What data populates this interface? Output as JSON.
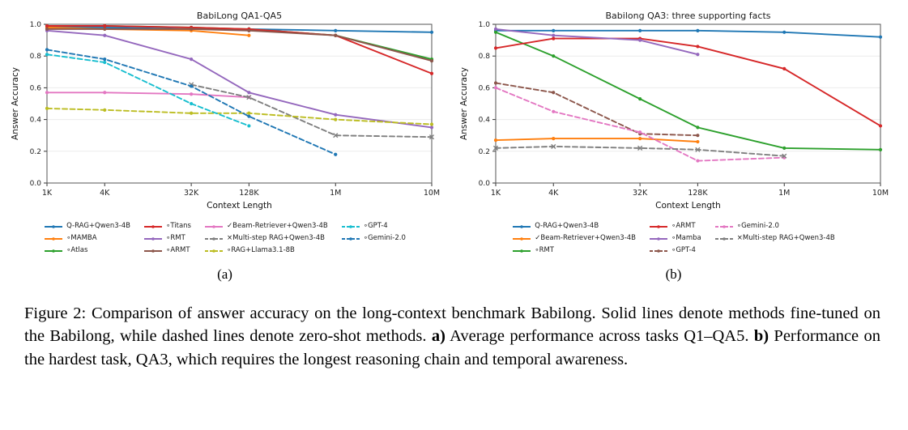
{
  "figure": {
    "subcaptions": [
      "(a)",
      "(b)"
    ],
    "caption_segments": [
      {
        "bold": false,
        "text": "Figure 2: Comparison of answer accuracy on the long-context benchmark Babilong. Solid lines denote methods fine-tuned on the Babilong, while dashed lines denote zero-shot methods. "
      },
      {
        "bold": true,
        "text": "a)"
      },
      {
        "bold": false,
        "text": " Average performance across tasks Q1–QA5. "
      },
      {
        "bold": true,
        "text": "b)"
      },
      {
        "bold": false,
        "text": " Performance on the hardest task, QA3, which requires the longest reasoning chain and temporal awareness."
      }
    ]
  },
  "chart_data": [
    {
      "type": "line",
      "title": "BabiLong QA1-QA5",
      "xlabel": "Context Length",
      "ylabel": "Answer Accuracy",
      "categories": [
        "1K",
        "4K",
        "32K",
        "128K",
        "1M",
        "10M"
      ],
      "x_positions": [
        3.0,
        3.6,
        4.5,
        5.1,
        6.0,
        7.0
      ],
      "ylim": [
        0.0,
        1.0
      ],
      "yticks": [
        0.0,
        0.2,
        0.4,
        0.6,
        0.8,
        1.0
      ],
      "grid": true,
      "legend_position": "below",
      "series": [
        {
          "label": "Q-RAG+Qwen3-4B",
          "color": "#1f77b4",
          "dashed": false,
          "marker": "dot",
          "values": [
            0.98,
            0.98,
            0.97,
            0.97,
            0.96,
            0.95
          ]
        },
        {
          "label": "∘MAMBA",
          "color": "#ff7f0e",
          "dashed": false,
          "marker": "dot",
          "values": [
            0.98,
            0.97,
            0.96,
            0.93,
            null,
            null
          ]
        },
        {
          "label": "∘Atlas",
          "color": "#2ca02c",
          "dashed": false,
          "marker": "dot",
          "values": [
            0.99,
            0.99,
            0.98,
            0.97,
            0.93,
            0.78
          ]
        },
        {
          "label": "∘Titans",
          "color": "#d62728",
          "dashed": false,
          "marker": "dot",
          "values": [
            0.99,
            0.99,
            0.98,
            0.97,
            0.93,
            0.69
          ]
        },
        {
          "label": "∘RMT",
          "color": "#9467bd",
          "dashed": false,
          "marker": "dot",
          "values": [
            0.96,
            0.93,
            0.78,
            0.57,
            0.43,
            0.35
          ]
        },
        {
          "label": "∘ARMT",
          "color": "#8c564b",
          "dashed": false,
          "marker": "dot",
          "values": [
            0.97,
            0.97,
            0.97,
            0.96,
            0.93,
            0.77
          ]
        },
        {
          "label": "✓Beam-Retriever+Qwen3-4B",
          "color": "#e377c2",
          "dashed": false,
          "marker": "dot",
          "values": [
            0.57,
            0.57,
            0.56,
            0.54,
            null,
            null
          ]
        },
        {
          "label": "×Multi-step RAG+Qwen3-4B",
          "color": "#7f7f7f",
          "dashed": true,
          "marker": "x",
          "values": [
            null,
            null,
            0.62,
            0.54,
            0.3,
            0.29
          ]
        },
        {
          "label": "∘RAG+Llama3.1-8B",
          "color": "#bcbd22",
          "dashed": true,
          "marker": "dot",
          "values": [
            0.47,
            0.46,
            0.44,
            0.44,
            0.4,
            0.37
          ]
        },
        {
          "label": "∘GPT-4",
          "color": "#17becf",
          "dashed": true,
          "marker": "dot",
          "values": [
            0.81,
            0.76,
            0.5,
            0.36,
            null,
            null
          ]
        },
        {
          "label": "∘Gemini-2.0",
          "color": "#1f77b4",
          "dashed": true,
          "marker": "dot",
          "values": [
            0.84,
            0.78,
            0.61,
            0.42,
            0.18,
            null
          ]
        }
      ]
    },
    {
      "type": "line",
      "title": "Babilong QA3: three supporting facts",
      "xlabel": "Context Length",
      "ylabel": "Answer Accuracy",
      "categories": [
        "1K",
        "4K",
        "32K",
        "128K",
        "1M",
        "10M"
      ],
      "x_positions": [
        3.0,
        3.6,
        4.5,
        5.1,
        6.0,
        7.0
      ],
      "ylim": [
        0.0,
        1.0
      ],
      "yticks": [
        0.0,
        0.2,
        0.4,
        0.6,
        0.8,
        1.0
      ],
      "grid": true,
      "legend_position": "below",
      "series": [
        {
          "label": "Q-RAG+Qwen3-4B",
          "color": "#1f77b4",
          "dashed": false,
          "marker": "dot",
          "values": [
            0.96,
            0.96,
            0.96,
            0.96,
            0.95,
            0.92
          ]
        },
        {
          "label": "✓Beam-Retriever+Qwen3-4B",
          "color": "#ff7f0e",
          "dashed": false,
          "marker": "dot",
          "values": [
            0.27,
            0.28,
            0.28,
            0.26,
            null,
            null
          ]
        },
        {
          "label": "∘RMT",
          "color": "#2ca02c",
          "dashed": false,
          "marker": "dot",
          "values": [
            0.95,
            0.8,
            0.53,
            0.35,
            0.22,
            0.21
          ]
        },
        {
          "label": "∘ARMT",
          "color": "#d62728",
          "dashed": false,
          "marker": "dot",
          "values": [
            0.85,
            0.91,
            0.91,
            0.86,
            0.72,
            0.36
          ]
        },
        {
          "label": "∘Mamba",
          "color": "#9467bd",
          "dashed": false,
          "marker": "dot",
          "values": [
            0.97,
            0.93,
            0.9,
            0.81,
            null,
            null
          ]
        },
        {
          "label": "∘GPT-4",
          "color": "#8c564b",
          "dashed": true,
          "marker": "dot",
          "values": [
            0.63,
            0.57,
            0.31,
            0.3,
            null,
            null
          ]
        },
        {
          "label": "∘Gemini-2.0",
          "color": "#e377c2",
          "dashed": true,
          "marker": "dot",
          "values": [
            0.6,
            0.45,
            0.32,
            0.14,
            0.16,
            null
          ]
        },
        {
          "label": "×Multi-step RAG+Qwen3-4B",
          "color": "#7f7f7f",
          "dashed": true,
          "marker": "x",
          "values": [
            0.22,
            0.23,
            0.22,
            0.21,
            0.17,
            null
          ]
        }
      ]
    }
  ]
}
